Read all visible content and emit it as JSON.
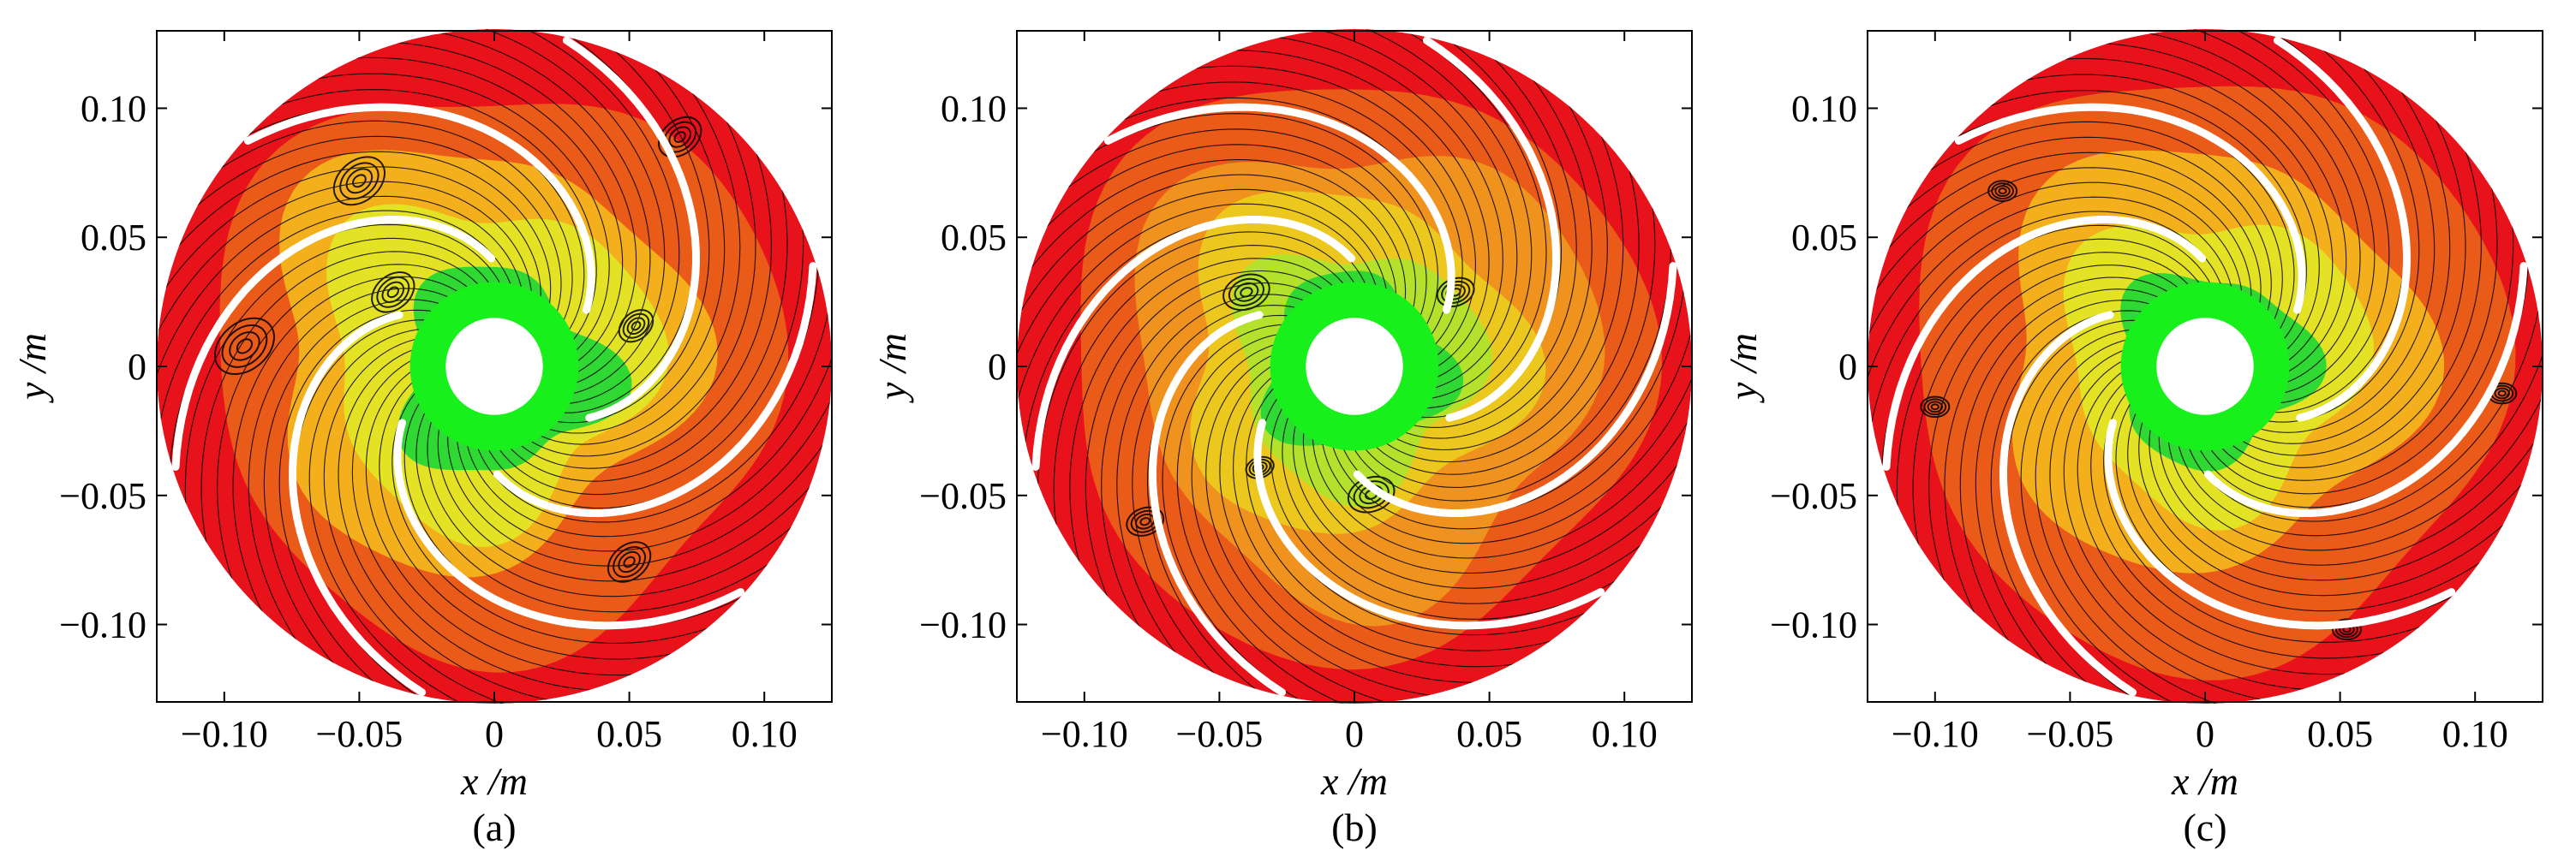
{
  "colors": {
    "red": "#e8121a",
    "orange_red": "#ea5a18",
    "orange": "#f0921e",
    "amber": "#f4b01c",
    "yellow_orange": "#ecc81e",
    "yellow": "#e4e224",
    "yellow_green": "#b4e22c",
    "green": "#30d834",
    "bright_green": "#18f01c",
    "blade": "#ffffff",
    "streamline": "#000000"
  },
  "panels": [
    {
      "caption": "(a)",
      "xlabel": "x /m",
      "ylabel": "y /m",
      "xticks": [
        "−0.10",
        "−0.05",
        "0",
        "0.05",
        "0.10"
      ],
      "yticks": [
        "0.10",
        "0.05",
        "0",
        "−0.05",
        "−0.10"
      ]
    },
    {
      "caption": "(b)",
      "xlabel": "x /m",
      "ylabel": "y /m",
      "xticks": [
        "−0.10",
        "−0.05",
        "0",
        "0.05",
        "0.10"
      ],
      "yticks": [
        "0.10",
        "0.05",
        "0",
        "−0.05",
        "−0.10"
      ]
    },
    {
      "caption": "(c)",
      "xlabel": "x /m",
      "ylabel": "y /m",
      "xticks": [
        "−0.10",
        "−0.05",
        "0",
        "0.05",
        "0.10"
      ],
      "yticks": [
        "0.10",
        "0.05",
        "0",
        "−0.05",
        "−0.10"
      ]
    }
  ],
  "chart_data": [
    {
      "type": "heatmap",
      "subtype": "contour with streamlines",
      "caption": "(a)",
      "xlabel": "x /m",
      "ylabel": "y /m",
      "xlim": [
        -0.125,
        0.125
      ],
      "ylim": [
        -0.13,
        0.13
      ],
      "x_ticks": [
        -0.1,
        -0.05,
        0,
        0.05,
        0.1
      ],
      "y_ticks": [
        -0.1,
        -0.05,
        0,
        0.05,
        0.1
      ],
      "impeller_outer_radius": 0.125,
      "hub_radius": 0.012,
      "blade_count": 6,
      "streamlines": true,
      "colorbar": "none",
      "color_fields": [
        "red",
        "orange_red",
        "amber",
        "yellow",
        "green",
        "bright_green"
      ]
    },
    {
      "type": "heatmap",
      "subtype": "contour with streamlines",
      "caption": "(b)",
      "xlabel": "x /m",
      "ylabel": "y /m",
      "xlim": [
        -0.125,
        0.125
      ],
      "ylim": [
        -0.13,
        0.13
      ],
      "x_ticks": [
        -0.1,
        -0.05,
        0,
        0.05,
        0.1
      ],
      "y_ticks": [
        -0.1,
        -0.05,
        0,
        0.05,
        0.1
      ],
      "impeller_outer_radius": 0.125,
      "hub_radius": 0.012,
      "blade_count": 6,
      "streamlines": true,
      "colorbar": "none",
      "color_fields": [
        "red",
        "orange_red",
        "orange",
        "yellow_orange",
        "yellow_green",
        "green"
      ]
    },
    {
      "type": "heatmap",
      "subtype": "contour with streamlines",
      "caption": "(c)",
      "xlabel": "x /m",
      "ylabel": "y /m",
      "xlim": [
        -0.125,
        0.125
      ],
      "ylim": [
        -0.13,
        0.13
      ],
      "x_ticks": [
        -0.1,
        -0.05,
        0,
        0.05,
        0.1
      ],
      "y_ticks": [
        -0.1,
        -0.05,
        0,
        0.05,
        0.1
      ],
      "impeller_outer_radius": 0.125,
      "hub_radius": 0.012,
      "blade_count": 6,
      "streamlines": true,
      "colorbar": "none",
      "color_fields": [
        "red",
        "orange_red",
        "amber",
        "yellow",
        "green"
      ]
    }
  ]
}
